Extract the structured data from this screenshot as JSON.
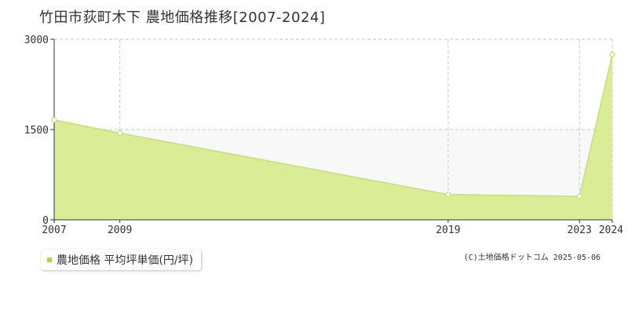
{
  "chart_data": {
    "type": "area",
    "title": "竹田市荻町木下 農地価格推移[2007-2024]",
    "x": [
      2007,
      2009,
      2019,
      2023,
      2024
    ],
    "x_ticks": [
      "2007",
      "2009",
      "2019",
      "2023",
      "2024"
    ],
    "y_ticks": [
      "0",
      "1500",
      "3000"
    ],
    "ylim": [
      0,
      3000
    ],
    "series": [
      {
        "name": "農地価格 平均坪単価(円/坪)",
        "values": [
          1660,
          1440,
          420,
          390,
          2750
        ]
      }
    ],
    "grid": true,
    "legend_position": "bottom-left",
    "colors": {
      "fill": "#dbec96",
      "line": "#c8e06a",
      "marker": "#ffffff",
      "legend_marker": "#b5d33d",
      "grid": "#c8c8c8",
      "band": "#f8f8f8"
    }
  },
  "footer": {
    "copyright": "(C)土地価格ドットコム 2025-05-06"
  }
}
